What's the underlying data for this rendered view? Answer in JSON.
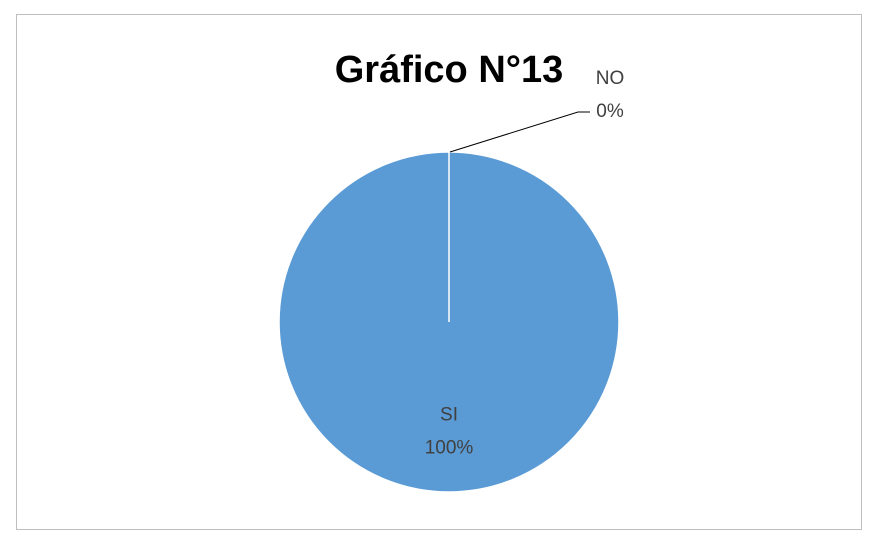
{
  "chart_data": {
    "type": "pie",
    "title": "Gráfico N°13",
    "categories": [
      "SI",
      "NO"
    ],
    "values": [
      100,
      0
    ],
    "value_labels": [
      "100%",
      "0%"
    ],
    "colors": [
      "#5b9bd5",
      "#ed7d31"
    ]
  }
}
